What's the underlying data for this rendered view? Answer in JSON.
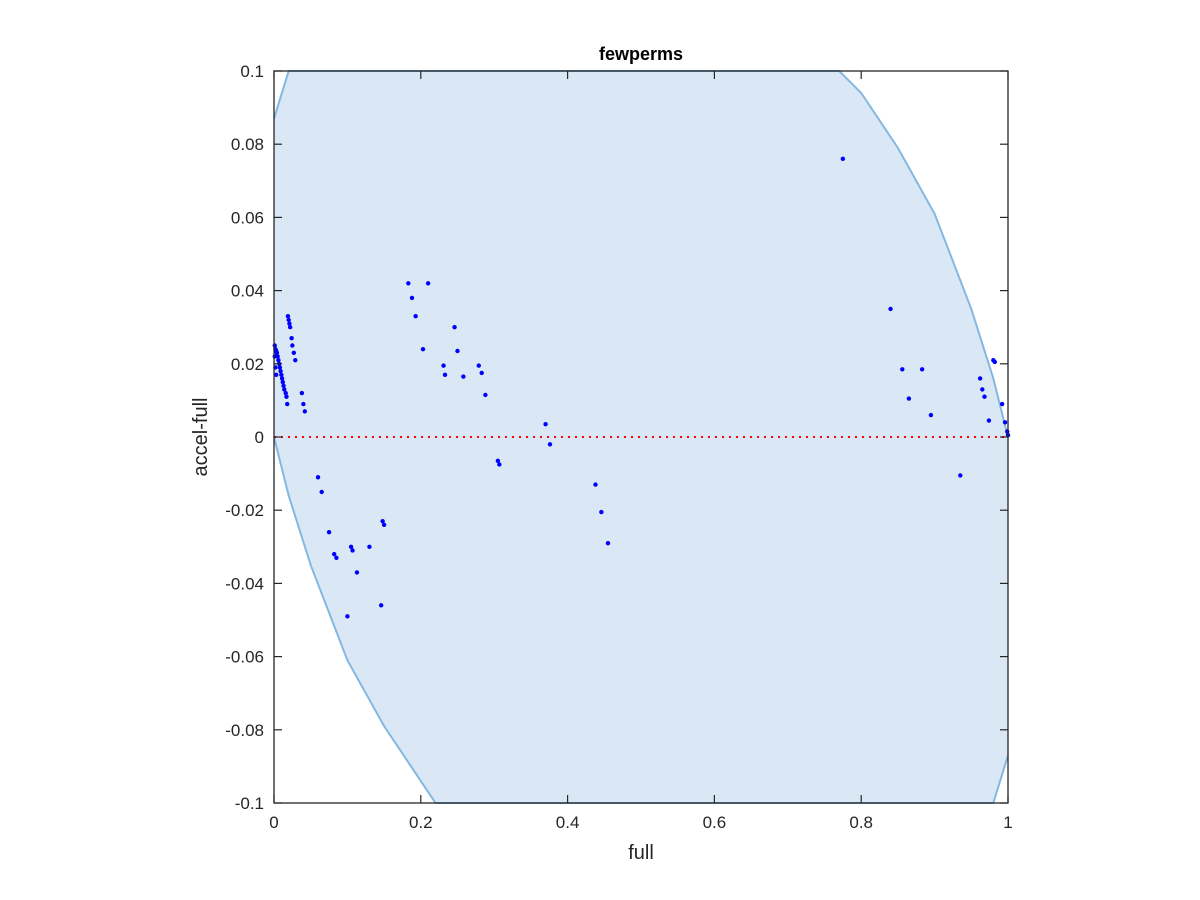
{
  "chart_data": {
    "type": "scatter",
    "title": "fewperms",
    "xlabel": "full",
    "ylabel": "accel-full",
    "xlim": [
      0,
      1
    ],
    "ylim": [
      -0.1,
      0.1
    ],
    "x_ticks": [
      0,
      0.2,
      0.4,
      0.6,
      0.8,
      1
    ],
    "x_tick_labels": [
      "0",
      "0.2",
      "0.4",
      "0.6",
      "0.8",
      "1"
    ],
    "y_ticks": [
      -0.1,
      -0.08,
      -0.06,
      -0.04,
      -0.02,
      0,
      0.02,
      0.04,
      0.06,
      0.08,
      0.1
    ],
    "y_tick_labels": [
      "-0.1",
      "-0.08",
      "-0.06",
      "-0.04",
      "-0.02",
      "0",
      "0.02",
      "0.04",
      "0.06",
      "0.08",
      "0.1"
    ],
    "grid": false,
    "colors": {
      "points": "#0000ff",
      "region_fill": "#d9e8f4",
      "region_edge": "#85b8e0",
      "zero_line": "#ff0000",
      "axes": "#262626"
    },
    "shaded_region": {
      "upper_boundary": [
        [
          0.0,
          0.087
        ],
        [
          0.02,
          0.1
        ],
        [
          0.77,
          0.1
        ],
        [
          0.8,
          0.094
        ],
        [
          0.85,
          0.079
        ],
        [
          0.9,
          0.061
        ],
        [
          0.95,
          0.035
        ],
        [
          0.98,
          0.016
        ],
        [
          1.0,
          0.0
        ]
      ],
      "lower_boundary": [
        [
          0.0,
          0.0
        ],
        [
          0.02,
          -0.016
        ],
        [
          0.05,
          -0.035
        ],
        [
          0.1,
          -0.061
        ],
        [
          0.15,
          -0.079
        ],
        [
          0.2,
          -0.094
        ],
        [
          0.22,
          -0.1
        ],
        [
          0.98,
          -0.1
        ],
        [
          1.0,
          -0.087
        ]
      ]
    },
    "zero_line": {
      "y": 0,
      "style": "dotted"
    },
    "points": [
      {
        "x": 0.001,
        "y": 0.025
      },
      {
        "x": 0.002,
        "y": 0.024
      },
      {
        "x": 0.003,
        "y": 0.0235
      },
      {
        "x": 0.004,
        "y": 0.023
      },
      {
        "x": 0.005,
        "y": 0.022
      },
      {
        "x": 0.006,
        "y": 0.021
      },
      {
        "x": 0.007,
        "y": 0.02
      },
      {
        "x": 0.008,
        "y": 0.019
      },
      {
        "x": 0.009,
        "y": 0.018
      },
      {
        "x": 0.01,
        "y": 0.017
      },
      {
        "x": 0.011,
        "y": 0.016
      },
      {
        "x": 0.012,
        "y": 0.015
      },
      {
        "x": 0.013,
        "y": 0.014
      },
      {
        "x": 0.014,
        "y": 0.013
      },
      {
        "x": 0.016,
        "y": 0.012
      },
      {
        "x": 0.017,
        "y": 0.011
      },
      {
        "x": 0.018,
        "y": 0.009
      },
      {
        "x": 0.001,
        "y": 0.022
      },
      {
        "x": 0.002,
        "y": 0.019
      },
      {
        "x": 0.003,
        "y": 0.017
      },
      {
        "x": 0.019,
        "y": 0.033
      },
      {
        "x": 0.02,
        "y": 0.032
      },
      {
        "x": 0.021,
        "y": 0.031
      },
      {
        "x": 0.022,
        "y": 0.03
      },
      {
        "x": 0.024,
        "y": 0.027
      },
      {
        "x": 0.025,
        "y": 0.025
      },
      {
        "x": 0.027,
        "y": 0.023
      },
      {
        "x": 0.029,
        "y": 0.021
      },
      {
        "x": 0.038,
        "y": 0.012
      },
      {
        "x": 0.04,
        "y": 0.009
      },
      {
        "x": 0.042,
        "y": 0.007
      },
      {
        "x": 0.06,
        "y": -0.011
      },
      {
        "x": 0.065,
        "y": -0.015
      },
      {
        "x": 0.075,
        "y": -0.026
      },
      {
        "x": 0.082,
        "y": -0.032
      },
      {
        "x": 0.085,
        "y": -0.033
      },
      {
        "x": 0.1,
        "y": -0.049
      },
      {
        "x": 0.105,
        "y": -0.03
      },
      {
        "x": 0.107,
        "y": -0.031
      },
      {
        "x": 0.113,
        "y": -0.037
      },
      {
        "x": 0.13,
        "y": -0.03
      },
      {
        "x": 0.146,
        "y": -0.046
      },
      {
        "x": 0.148,
        "y": -0.023
      },
      {
        "x": 0.15,
        "y": -0.024
      },
      {
        "x": 0.183,
        "y": 0.042
      },
      {
        "x": 0.188,
        "y": 0.038
      },
      {
        "x": 0.193,
        "y": 0.033
      },
      {
        "x": 0.203,
        "y": 0.024
      },
      {
        "x": 0.21,
        "y": 0.042
      },
      {
        "x": 0.231,
        "y": 0.0195
      },
      {
        "x": 0.233,
        "y": 0.017
      },
      {
        "x": 0.246,
        "y": 0.03
      },
      {
        "x": 0.25,
        "y": 0.0235
      },
      {
        "x": 0.258,
        "y": 0.0165
      },
      {
        "x": 0.279,
        "y": 0.0195
      },
      {
        "x": 0.283,
        "y": 0.0175
      },
      {
        "x": 0.288,
        "y": 0.0115
      },
      {
        "x": 0.305,
        "y": -0.0065
      },
      {
        "x": 0.307,
        "y": -0.0075
      },
      {
        "x": 0.37,
        "y": 0.0035
      },
      {
        "x": 0.376,
        "y": -0.002
      },
      {
        "x": 0.438,
        "y": -0.013
      },
      {
        "x": 0.446,
        "y": -0.0205
      },
      {
        "x": 0.455,
        "y": -0.029
      },
      {
        "x": 0.775,
        "y": 0.076
      },
      {
        "x": 0.84,
        "y": 0.035
      },
      {
        "x": 0.856,
        "y": 0.0185
      },
      {
        "x": 0.865,
        "y": 0.0105
      },
      {
        "x": 0.883,
        "y": 0.0185
      },
      {
        "x": 0.895,
        "y": 0.006
      },
      {
        "x": 0.935,
        "y": -0.0105
      },
      {
        "x": 0.962,
        "y": 0.016
      },
      {
        "x": 0.965,
        "y": 0.013
      },
      {
        "x": 0.968,
        "y": 0.011
      },
      {
        "x": 0.974,
        "y": 0.0045
      },
      {
        "x": 0.98,
        "y": 0.021
      },
      {
        "x": 0.982,
        "y": 0.0205
      },
      {
        "x": 0.992,
        "y": 0.009
      },
      {
        "x": 0.996,
        "y": 0.004
      },
      {
        "x": 0.999,
        "y": 0.0015
      },
      {
        "x": 1.0,
        "y": 0.0005
      }
    ]
  }
}
